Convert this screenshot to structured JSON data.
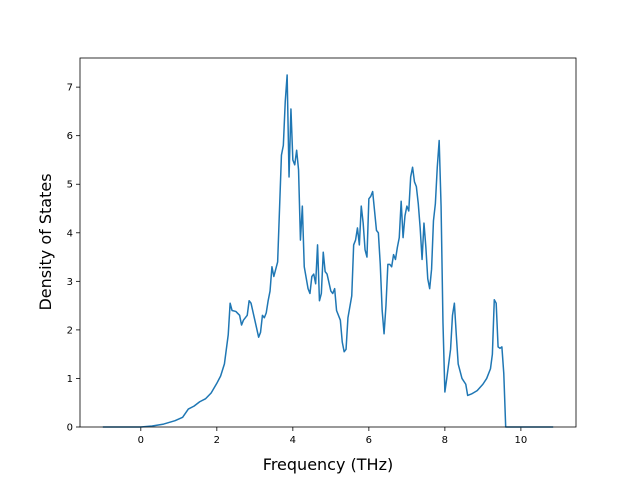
{
  "chart_data": {
    "type": "line",
    "title": "",
    "xlabel": "Frequency (THz)",
    "ylabel": "Density of States",
    "xlim": [
      -1.6,
      11.45
    ],
    "ylim": [
      0,
      7.6
    ],
    "x_ticks": [
      0,
      2,
      4,
      6,
      8,
      10
    ],
    "y_ticks": [
      0,
      1,
      2,
      3,
      4,
      5,
      6,
      7
    ],
    "grid": false,
    "legend": "none",
    "series": [
      {
        "color": "#1f77b4",
        "points": [
          [
            -1.0,
            0.0
          ],
          [
            -0.5,
            0.0
          ],
          [
            0.0,
            0.0
          ],
          [
            0.3,
            0.02
          ],
          [
            0.6,
            0.06
          ],
          [
            0.9,
            0.13
          ],
          [
            1.1,
            0.2
          ],
          [
            1.25,
            0.37
          ],
          [
            1.4,
            0.43
          ],
          [
            1.55,
            0.52
          ],
          [
            1.7,
            0.58
          ],
          [
            1.85,
            0.7
          ],
          [
            2.0,
            0.9
          ],
          [
            2.1,
            1.05
          ],
          [
            2.2,
            1.3
          ],
          [
            2.3,
            1.9
          ],
          [
            2.35,
            2.55
          ],
          [
            2.4,
            2.4
          ],
          [
            2.5,
            2.38
          ],
          [
            2.6,
            2.3
          ],
          [
            2.65,
            2.1
          ],
          [
            2.7,
            2.2
          ],
          [
            2.8,
            2.3
          ],
          [
            2.85,
            2.6
          ],
          [
            2.9,
            2.55
          ],
          [
            3.0,
            2.2
          ],
          [
            3.1,
            1.85
          ],
          [
            3.15,
            1.95
          ],
          [
            3.2,
            2.3
          ],
          [
            3.25,
            2.25
          ],
          [
            3.3,
            2.35
          ],
          [
            3.35,
            2.6
          ],
          [
            3.4,
            2.8
          ],
          [
            3.45,
            3.3
          ],
          [
            3.5,
            3.1
          ],
          [
            3.55,
            3.25
          ],
          [
            3.6,
            3.4
          ],
          [
            3.7,
            5.6
          ],
          [
            3.75,
            5.8
          ],
          [
            3.8,
            6.7
          ],
          [
            3.85,
            7.25
          ],
          [
            3.9,
            5.15
          ],
          [
            3.95,
            6.55
          ],
          [
            4.0,
            5.5
          ],
          [
            4.05,
            5.4
          ],
          [
            4.1,
            5.7
          ],
          [
            4.15,
            5.3
          ],
          [
            4.2,
            3.85
          ],
          [
            4.25,
            4.55
          ],
          [
            4.3,
            3.3
          ],
          [
            4.4,
            2.85
          ],
          [
            4.45,
            2.75
          ],
          [
            4.5,
            3.1
          ],
          [
            4.55,
            3.15
          ],
          [
            4.6,
            2.95
          ],
          [
            4.65,
            3.75
          ],
          [
            4.7,
            2.6
          ],
          [
            4.75,
            2.75
          ],
          [
            4.8,
            3.6
          ],
          [
            4.85,
            3.2
          ],
          [
            4.9,
            3.15
          ],
          [
            5.0,
            2.8
          ],
          [
            5.05,
            2.75
          ],
          [
            5.1,
            2.85
          ],
          [
            5.15,
            2.4
          ],
          [
            5.25,
            2.2
          ],
          [
            5.3,
            1.75
          ],
          [
            5.35,
            1.55
          ],
          [
            5.4,
            1.6
          ],
          [
            5.45,
            2.25
          ],
          [
            5.55,
            2.7
          ],
          [
            5.6,
            3.75
          ],
          [
            5.65,
            3.85
          ],
          [
            5.7,
            4.1
          ],
          [
            5.75,
            3.75
          ],
          [
            5.8,
            4.55
          ],
          [
            5.85,
            4.2
          ],
          [
            5.9,
            3.65
          ],
          [
            5.95,
            3.5
          ],
          [
            6.0,
            4.7
          ],
          [
            6.05,
            4.75
          ],
          [
            6.1,
            4.85
          ],
          [
            6.2,
            4.05
          ],
          [
            6.25,
            4.0
          ],
          [
            6.3,
            3.35
          ],
          [
            6.35,
            2.4
          ],
          [
            6.4,
            1.92
          ],
          [
            6.45,
            2.5
          ],
          [
            6.5,
            3.35
          ],
          [
            6.55,
            3.35
          ],
          [
            6.6,
            3.3
          ],
          [
            6.65,
            3.55
          ],
          [
            6.7,
            3.45
          ],
          [
            6.75,
            3.7
          ],
          [
            6.8,
            3.9
          ],
          [
            6.85,
            4.65
          ],
          [
            6.9,
            3.9
          ],
          [
            6.95,
            4.35
          ],
          [
            7.0,
            4.55
          ],
          [
            7.05,
            4.45
          ],
          [
            7.1,
            5.15
          ],
          [
            7.15,
            5.35
          ],
          [
            7.2,
            5.05
          ],
          [
            7.25,
            4.95
          ],
          [
            7.3,
            4.6
          ],
          [
            7.35,
            4.1
          ],
          [
            7.4,
            3.45
          ],
          [
            7.45,
            4.2
          ],
          [
            7.5,
            3.7
          ],
          [
            7.55,
            3.05
          ],
          [
            7.6,
            2.85
          ],
          [
            7.65,
            3.25
          ],
          [
            7.7,
            4.25
          ],
          [
            7.75,
            4.6
          ],
          [
            7.8,
            5.35
          ],
          [
            7.85,
            5.9
          ],
          [
            7.9,
            4.55
          ],
          [
            7.95,
            2.15
          ],
          [
            8.0,
            0.72
          ],
          [
            8.05,
            1.0
          ],
          [
            8.15,
            1.6
          ],
          [
            8.2,
            2.3
          ],
          [
            8.25,
            2.55
          ],
          [
            8.3,
            1.9
          ],
          [
            8.35,
            1.3
          ],
          [
            8.45,
            1.0
          ],
          [
            8.55,
            0.88
          ],
          [
            8.6,
            0.65
          ],
          [
            8.7,
            0.68
          ],
          [
            8.85,
            0.75
          ],
          [
            9.0,
            0.88
          ],
          [
            9.1,
            1.0
          ],
          [
            9.2,
            1.2
          ],
          [
            9.25,
            1.5
          ],
          [
            9.3,
            2.62
          ],
          [
            9.35,
            2.55
          ],
          [
            9.4,
            1.65
          ],
          [
            9.45,
            1.62
          ],
          [
            9.5,
            1.65
          ],
          [
            9.55,
            1.1
          ],
          [
            9.6,
            0.0
          ],
          [
            9.9,
            0.0
          ],
          [
            10.2,
            0.0
          ],
          [
            10.5,
            0.0
          ],
          [
            10.85,
            0.0
          ]
        ]
      }
    ]
  }
}
